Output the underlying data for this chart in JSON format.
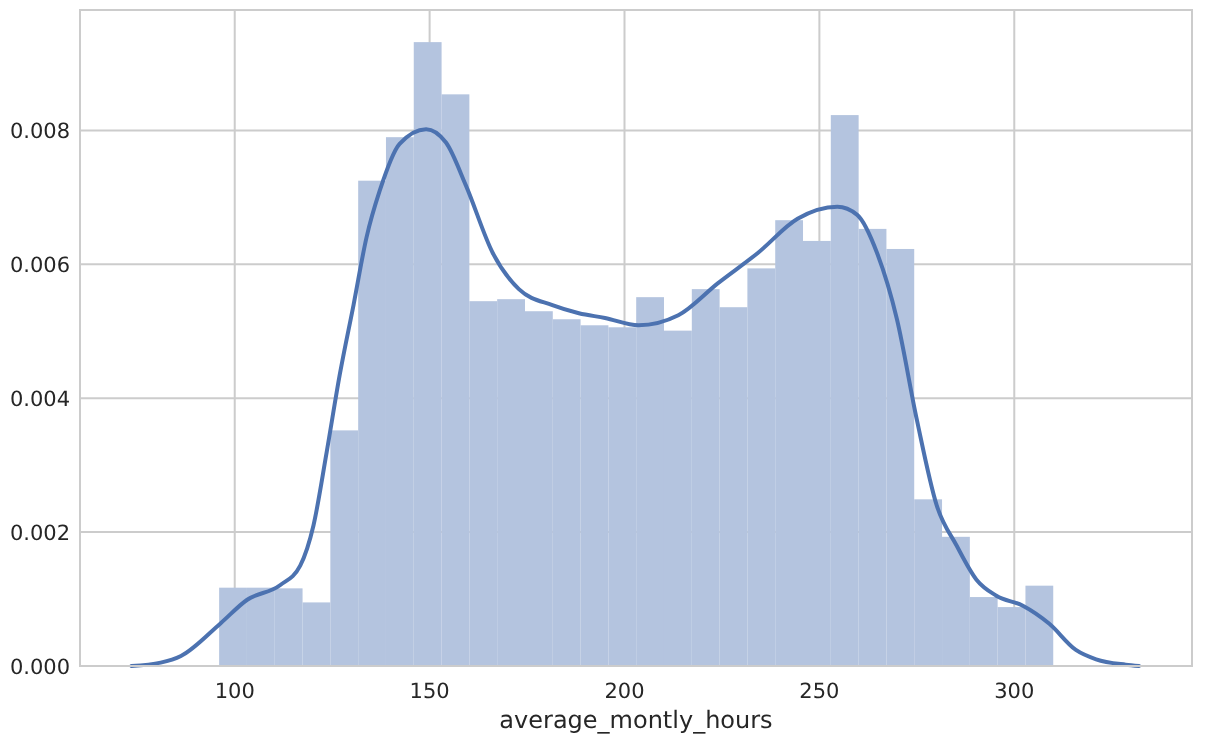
{
  "chart_data": {
    "type": "histogram",
    "xlabel": "average_montly_hours",
    "xlim": [
      60.3,
      345.6
    ],
    "xticks": [
      100,
      150,
      200,
      250,
      300
    ],
    "ylim": [
      0,
      0.0098
    ],
    "yticks": [
      {
        "value": 0,
        "label": "0.000"
      },
      {
        "value": 0.002,
        "label": "0.002"
      },
      {
        "value": 0.004,
        "label": "0.004"
      },
      {
        "value": 0.006,
        "label": "0.006"
      },
      {
        "value": 0.008,
        "label": "0.008"
      }
    ],
    "grid": true,
    "bins": [
      96,
      103.13,
      110.27,
      117.4,
      124.53,
      131.67,
      138.8,
      145.93,
      153.07,
      160.2,
      167.33,
      174.47,
      181.6,
      188.73,
      195.87,
      203,
      210.13,
      217.27,
      224.4,
      231.53,
      238.67,
      245.8,
      252.93,
      260.07,
      267.2,
      274.33,
      281.47,
      288.6,
      295.73,
      302.87,
      310
    ],
    "values": [
      0.00117,
      0.00117,
      0.00116,
      0.00095,
      0.00352,
      0.00725,
      0.0079,
      0.00932,
      0.00854,
      0.00545,
      0.00548,
      0.0053,
      0.00518,
      0.00509,
      0.00506,
      0.00551,
      0.00501,
      0.00563,
      0.00536,
      0.00594,
      0.00666,
      0.00635,
      0.00823,
      0.00653,
      0.00623,
      0.00249,
      0.00193,
      0.00103,
      0.00088,
      0.0012
    ],
    "color": "#b4c4df",
    "series": [
      {
        "type": "line",
        "color": "#4c72b0",
        "x": [
          73.5,
          81,
          86.2,
          96.4,
          103.2,
          111.7,
          116.8,
          120.2,
          123.6,
          127,
          130.5,
          133.8,
          137.2,
          142.3,
          149.1,
          154.2,
          159.3,
          166.2,
          172.9,
          181.5,
          188.3,
          195,
          203.6,
          213.8,
          224,
          234.2,
          244.4,
          254.6,
          259.7,
          264.8,
          269.9,
          275,
          280.1,
          285.2,
          290.3,
          295.4,
          302.2,
          309,
          315.8,
          321,
          328.6,
          332
        ],
        "values": [
          0,
          5e-05,
          0.00015,
          0.00064,
          0.00099,
          0.00121,
          0.0015,
          0.0021,
          0.0032,
          0.00437,
          0.0054,
          0.0064,
          0.0071,
          0.0078,
          0.00802,
          0.00782,
          0.00718,
          0.00617,
          0.00563,
          0.00539,
          0.00527,
          0.0052,
          0.00509,
          0.00524,
          0.00572,
          0.00617,
          0.00668,
          0.00686,
          0.00674,
          0.00617,
          0.00518,
          0.00368,
          0.0024,
          0.0018,
          0.00129,
          0.00105,
          0.0009,
          0.00063,
          0.00024,
          0.0001,
          2e-05,
          0
        ]
      }
    ]
  }
}
